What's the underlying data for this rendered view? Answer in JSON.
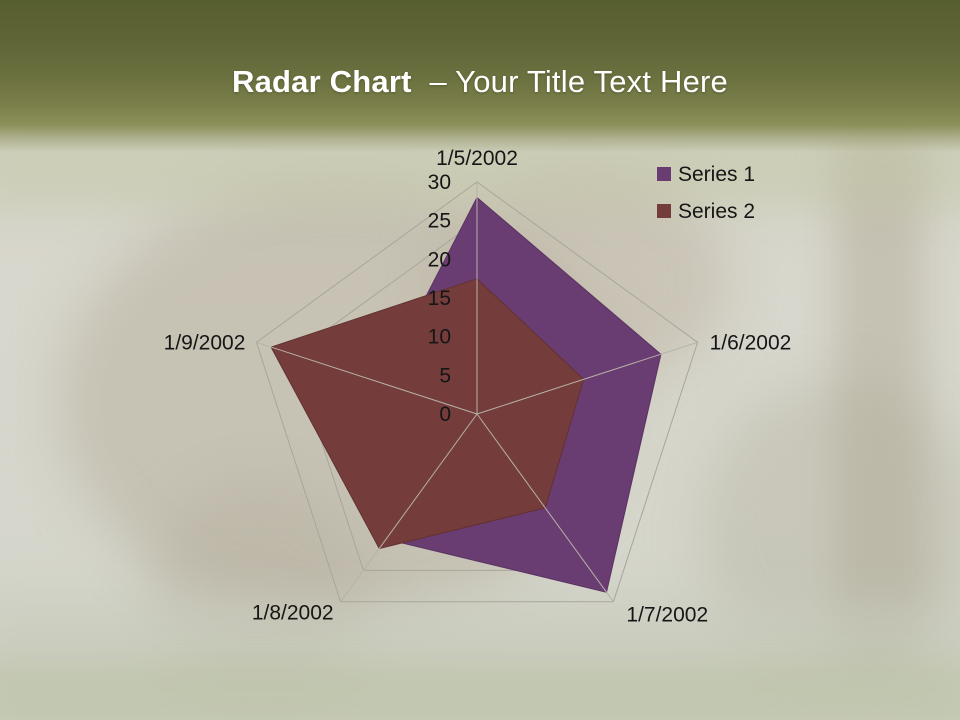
{
  "header": {
    "title_bold": "Radar Chart",
    "title_rest": "– Your Title Text Here"
  },
  "chart_data": {
    "type": "radar",
    "title": "",
    "categories": [
      "1/5/2002",
      "1/6/2002",
      "1/7/2002",
      "1/8/2002",
      "1/9/2002"
    ],
    "series": [
      {
        "name": "Series 1",
        "color": "#6a3d72",
        "edge_color": "#5a3261",
        "values": [
          28,
          25,
          28.5,
          20,
          13
        ]
      },
      {
        "name": "Series 2",
        "color": "#753c3c",
        "edge_color": "#633030",
        "values": [
          17.5,
          14.5,
          15,
          21.5,
          28
        ]
      }
    ],
    "r_axis": {
      "min": 0,
      "max": 30,
      "step": 5,
      "tick_labels": [
        "0",
        "5",
        "10",
        "15",
        "20",
        "25",
        "30"
      ]
    },
    "grid": true,
    "grid_color": "#a9a59c",
    "axis_line_color": "#b5b1a8",
    "label_color": "#161616",
    "legend_position": "top-right"
  }
}
